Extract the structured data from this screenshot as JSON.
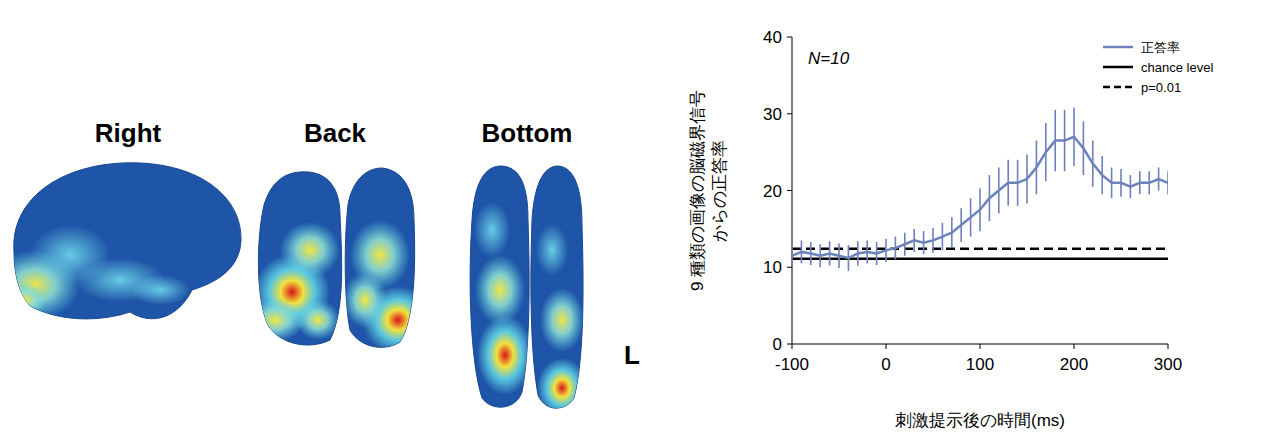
{
  "chart_data": {
    "type": "line",
    "ylabel": "9 種類の画像の脳磁界信号からの正答率",
    "xlabel": "刺激提示後の時間(ms)",
    "annotation": "N=10",
    "x": [
      -100,
      -90,
      -80,
      -70,
      -60,
      -50,
      -40,
      -30,
      -20,
      -10,
      0,
      10,
      20,
      30,
      40,
      50,
      60,
      70,
      80,
      90,
      100,
      110,
      120,
      130,
      140,
      150,
      160,
      170,
      180,
      190,
      200,
      210,
      220,
      230,
      240,
      250,
      260,
      270,
      280,
      290,
      300
    ],
    "series": [
      {
        "name": "正答率",
        "color": "#6d82bd",
        "line_style": "solid",
        "values": [
          11.5,
          12,
          11.8,
          11.5,
          11.8,
          11.5,
          11.2,
          11.8,
          12,
          11.8,
          12.2,
          12.5,
          13,
          13.5,
          13.2,
          13.5,
          14,
          14.5,
          15.5,
          16.5,
          17.5,
          19,
          20,
          21,
          21,
          21.5,
          23,
          25,
          26.5,
          26.5,
          27,
          25.5,
          23.5,
          22,
          21,
          21,
          20.5,
          21,
          21,
          21.5,
          21
        ],
        "errors": [
          1.5,
          1.5,
          1.5,
          1.5,
          1.6,
          1.6,
          1.7,
          1.6,
          1.5,
          1.5,
          1.5,
          1.5,
          1.5,
          1.5,
          1.5,
          1.6,
          1.8,
          2,
          2.2,
          2.5,
          2.8,
          3,
          3,
          3,
          3,
          3.2,
          3.5,
          3.8,
          4,
          4,
          3.8,
          3.5,
          3,
          2.5,
          2,
          1.8,
          1.5,
          1.5,
          1.5,
          1.5,
          1.5
        ]
      }
    ],
    "reference_lines": [
      {
        "name": "chance level",
        "value": 11.1,
        "color": "#000000",
        "line_style": "solid"
      },
      {
        "name": "p=0.01",
        "value": 12.4,
        "color": "#000000",
        "line_style": "dashed"
      }
    ],
    "xlim": [
      -100,
      300
    ],
    "xticks": [
      -100,
      0,
      100,
      200,
      300
    ],
    "ylim": [
      0,
      40
    ],
    "yticks": [
      0,
      10,
      20,
      30,
      40
    ],
    "grid": false,
    "legend": "upper right"
  },
  "brain_panels": {
    "views": [
      "Right",
      "Back",
      "Bottom"
    ],
    "hemisphere_label": "L"
  }
}
